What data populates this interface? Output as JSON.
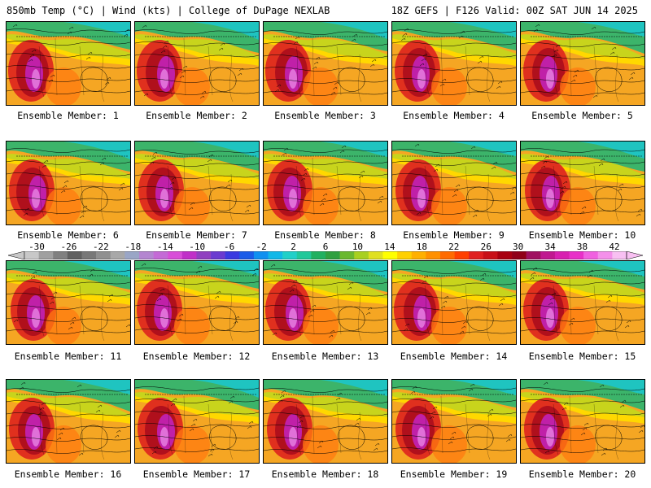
{
  "header": {
    "left": "850mb Temp (°C) | Wind (kts) | College of DuPage NEXLAB",
    "right": "18Z GEFS | F126 Valid: 00Z SAT JUN 14 2025"
  },
  "panels": [
    {
      "label": "Ensemble Member: 1"
    },
    {
      "label": "Ensemble Member: 2"
    },
    {
      "label": "Ensemble Member: 3"
    },
    {
      "label": "Ensemble Member: 4"
    },
    {
      "label": "Ensemble Member: 5"
    },
    {
      "label": "Ensemble Member: 6"
    },
    {
      "label": "Ensemble Member: 7"
    },
    {
      "label": "Ensemble Member: 8"
    },
    {
      "label": "Ensemble Member: 9"
    },
    {
      "label": "Ensemble Member: 10"
    },
    {
      "label": "Ensemble Member: 11"
    },
    {
      "label": "Ensemble Member: 12"
    },
    {
      "label": "Ensemble Member: 13"
    },
    {
      "label": "Ensemble Member: 14"
    },
    {
      "label": "Ensemble Member: 15"
    },
    {
      "label": "Ensemble Member: 16"
    },
    {
      "label": "Ensemble Member: 17"
    },
    {
      "label": "Ensemble Member: 18"
    },
    {
      "label": "Ensemble Member: 19"
    },
    {
      "label": "Ensemble Member: 20"
    }
  ],
  "legend": {
    "ticks": [
      "-30",
      "-26",
      "-22",
      "-18",
      "-14",
      "-10",
      "-6",
      "-2",
      "2",
      "6",
      "10",
      "14",
      "18",
      "22",
      "26",
      "30",
      "34",
      "38",
      "42"
    ],
    "colors": [
      "#c8c8c8",
      "#a0a0a0",
      "#808080",
      "#606060",
      "#787878",
      "#909090",
      "#a8a8a8",
      "#9aa6c6",
      "#b486d0",
      "#c46ad6",
      "#d84ed8",
      "#c030c8",
      "#9040c0",
      "#6a3ad0",
      "#3a3ae0",
      "#1a5ce8",
      "#1090f0",
      "#10b8e8",
      "#20d0c8",
      "#20c89a",
      "#20b060",
      "#30a040",
      "#6ab830",
      "#a8d020",
      "#e0e020",
      "#ffff00",
      "#ffd000",
      "#ffb000",
      "#ff9000",
      "#ff6a00",
      "#ff4000",
      "#e02020",
      "#c81018",
      "#a80010",
      "#900018",
      "#a01060",
      "#c01890",
      "#d820b0",
      "#e830c8",
      "#f060e0",
      "#f490ea",
      "#f8c0f2"
    ]
  }
}
